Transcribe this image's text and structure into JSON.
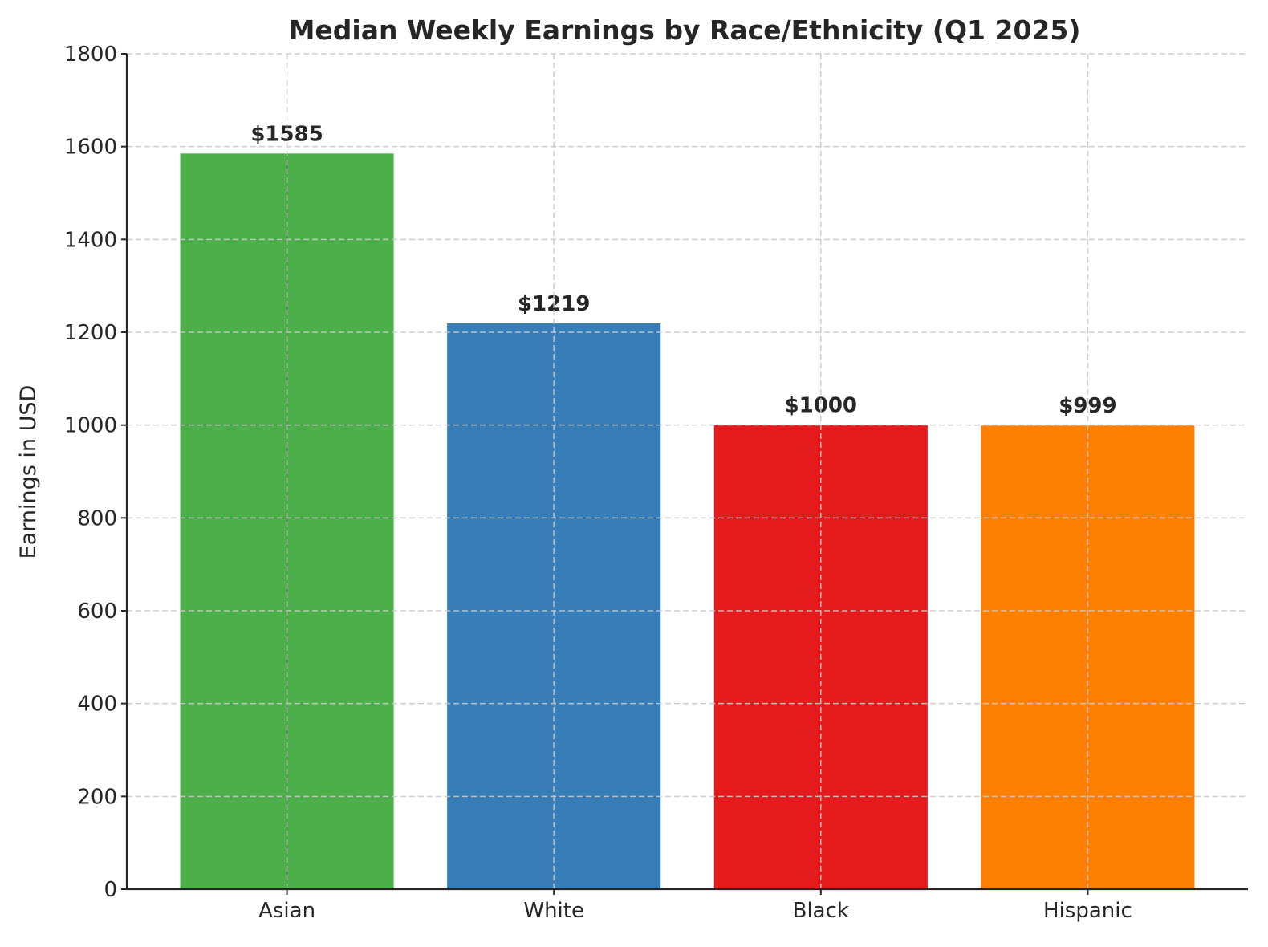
{
  "chart_data": {
    "type": "bar",
    "title": "Median Weekly Earnings by Race/Ethnicity (Q1 2025)",
    "xlabel": "",
    "ylabel": "Earnings in USD",
    "categories": [
      "Asian",
      "White",
      "Black",
      "Hispanic"
    ],
    "values": [
      1585,
      1219,
      1000,
      999
    ],
    "data_labels": [
      "$1585",
      "$1219",
      "$1000",
      "$999"
    ],
    "colors": [
      "#4daf4a",
      "#377eb8",
      "#e41a1c",
      "#ff7f00"
    ],
    "ylim": [
      0,
      1800
    ],
    "yticks": [
      0,
      200,
      400,
      600,
      800,
      1000,
      1200,
      1400,
      1600,
      1800
    ],
    "grid": true,
    "legend": "none"
  }
}
